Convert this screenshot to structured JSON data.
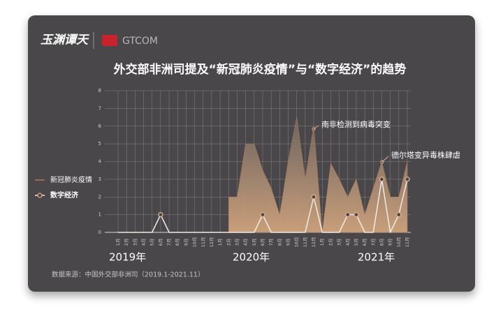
{
  "header": {
    "logo": "玉渊谭天",
    "brand": "GTCOM"
  },
  "chart_data": {
    "type": "area-line",
    "title": "外交部非洲司提及“新冠肺炎疫情”与“数字经济”的趋势",
    "categories": [
      "1月",
      "2月",
      "3月",
      "4月",
      "5月",
      "6月",
      "7月",
      "8月",
      "9月",
      "10月",
      "11月",
      "12月",
      "1月",
      "2月",
      "3月",
      "4月",
      "5月",
      "6月",
      "7月",
      "8月",
      "9月",
      "10月",
      "11月",
      "12月",
      "1月",
      "2月",
      "3月",
      "4月",
      "5月",
      "6月",
      "7月",
      "8月",
      "9月",
      "10月",
      "11月"
    ],
    "year_labels": [
      "2019年",
      "2020年",
      "2021年"
    ],
    "series": [
      {
        "name": "新冠肺炎疫情",
        "color": "#b07a5a",
        "values": [
          null,
          null,
          null,
          null,
          null,
          null,
          null,
          null,
          null,
          null,
          null,
          null,
          null,
          2,
          2,
          5,
          5,
          3.5,
          2.5,
          1,
          4,
          6.5,
          3,
          6,
          0,
          3.9,
          3,
          2,
          3,
          1,
          2.5,
          4,
          2,
          2,
          4
        ]
      },
      {
        "name": "数字经济",
        "color": "#f2ece6",
        "values": [
          0,
          0,
          0,
          0,
          0,
          1,
          0,
          0,
          0,
          0,
          0,
          0,
          0,
          0,
          0,
          0,
          0,
          1,
          0,
          0,
          0,
          0,
          0,
          2,
          0,
          0,
          0,
          1,
          1,
          0,
          0,
          3,
          0,
          1,
          3
        ]
      }
    ],
    "annotations": [
      "南非检测到病毒突变",
      "德尔塔变异毒株肆虐"
    ],
    "ylim": [
      0,
      8
    ],
    "yticks": [
      0,
      1,
      2,
      3,
      4,
      5,
      6,
      7,
      8
    ],
    "grid": true,
    "source": "数据来源：中国外交部非洲司（2019.1-2021.11）"
  }
}
